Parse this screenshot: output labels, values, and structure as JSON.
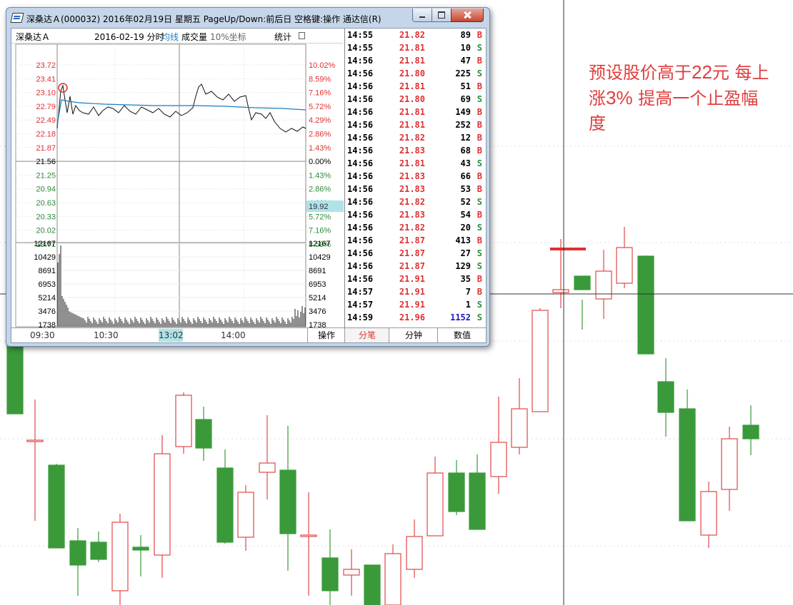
{
  "annotation": {
    "line1_a": "预设股价高于",
    "line1_b": "22",
    "line1_c": "元 每上",
    "line2_a": "涨",
    "line2_b": "3%",
    "line2_c": " 提高一个止盈幅",
    "line3": "度"
  },
  "window": {
    "title": "深桑达Ａ(000032) 2016年02月19日 星期五 PageUp/Down:前后日 空格键:操作 通达信(R)"
  },
  "header": {
    "name": "深桑达Ａ",
    "date": "2016-02-19 分时",
    "avg": "均线",
    "vol": "成交量",
    "scale": "10%坐标",
    "stats": "统计"
  },
  "price_axis": [
    {
      "price": "23.72",
      "pct": "10.02%",
      "dir": "up"
    },
    {
      "price": "23.41",
      "pct": "8.59%",
      "dir": "up"
    },
    {
      "price": "23.10",
      "pct": "7.16%",
      "dir": "up"
    },
    {
      "price": "22.79",
      "pct": "5.72%",
      "dir": "up"
    },
    {
      "price": "22.49",
      "pct": "4.29%",
      "dir": "up"
    },
    {
      "price": "22.18",
      "pct": "2.86%",
      "dir": "up"
    },
    {
      "price": "21.87",
      "pct": "1.43%",
      "dir": "up"
    },
    {
      "price": "21.56",
      "pct": "0.00%",
      "dir": "flat"
    },
    {
      "price": "21.25",
      "pct": "1.43%",
      "dir": "down"
    },
    {
      "price": "20.94",
      "pct": "2.86%",
      "dir": "down"
    },
    {
      "price": "20.63",
      "pct": "4.29%",
      "dir": "down"
    },
    {
      "price": "20.33",
      "pct": "5.72%",
      "dir": "down"
    },
    {
      "price": "20.02",
      "pct": "7.16%",
      "dir": "down"
    },
    {
      "price": "19.71",
      "pct": "8.59%",
      "dir": "down"
    }
  ],
  "cursor_price": "19.92",
  "volume_axis": [
    "12167",
    "10429",
    "8691",
    "6953",
    "5214",
    "3476",
    "1738"
  ],
  "time_axis": [
    "09:30",
    "10:30",
    "14:00"
  ],
  "cursor_time": "13:02",
  "tabs": {
    "operate": "操作",
    "ticks": "分笔",
    "minute": "分钟",
    "data": "数值"
  },
  "ticks": [
    {
      "time": "14:55",
      "price": "21.82",
      "vol": "89",
      "side": "B"
    },
    {
      "time": "14:55",
      "price": "21.81",
      "vol": "10",
      "side": "S"
    },
    {
      "time": "14:56",
      "price": "21.81",
      "vol": "47",
      "side": "B"
    },
    {
      "time": "14:56",
      "price": "21.80",
      "vol": "225",
      "side": "S"
    },
    {
      "time": "14:56",
      "price": "21.81",
      "vol": "51",
      "side": "B"
    },
    {
      "time": "14:56",
      "price": "21.80",
      "vol": "69",
      "side": "S"
    },
    {
      "time": "14:56",
      "price": "21.81",
      "vol": "149",
      "side": "B"
    },
    {
      "time": "14:56",
      "price": "21.81",
      "vol": "252",
      "side": "B"
    },
    {
      "time": "14:56",
      "price": "21.82",
      "vol": "12",
      "side": "B"
    },
    {
      "time": "14:56",
      "price": "21.83",
      "vol": "68",
      "side": "B"
    },
    {
      "time": "14:56",
      "price": "21.81",
      "vol": "43",
      "side": "S"
    },
    {
      "time": "14:56",
      "price": "21.83",
      "vol": "66",
      "side": "B"
    },
    {
      "time": "14:56",
      "price": "21.83",
      "vol": "53",
      "side": "B"
    },
    {
      "time": "14:56",
      "price": "21.82",
      "vol": "52",
      "side": "S"
    },
    {
      "time": "14:56",
      "price": "21.83",
      "vol": "54",
      "side": "B"
    },
    {
      "time": "14:56",
      "price": "21.82",
      "vol": "20",
      "side": "S"
    },
    {
      "time": "14:56",
      "price": "21.87",
      "vol": "413",
      "side": "B"
    },
    {
      "time": "14:56",
      "price": "21.87",
      "vol": "27",
      "side": "S"
    },
    {
      "time": "14:56",
      "price": "21.87",
      "vol": "129",
      "side": "S"
    },
    {
      "time": "14:56",
      "price": "21.91",
      "vol": "35",
      "side": "B"
    },
    {
      "time": "14:57",
      "price": "21.91",
      "vol": "7",
      "side": "B"
    },
    {
      "time": "14:57",
      "price": "21.91",
      "vol": "1",
      "side": "S"
    },
    {
      "time": "14:59",
      "price": "21.96",
      "vol": "1152",
      "side": "S"
    }
  ],
  "colors": {
    "up": "#e03030",
    "down": "#2e8b3a",
    "bull_candle": "#e04848",
    "bear_candle": "#3a9a3a",
    "avg_line": "#1a7fbf",
    "big_volume": "#1a1acd"
  }
}
